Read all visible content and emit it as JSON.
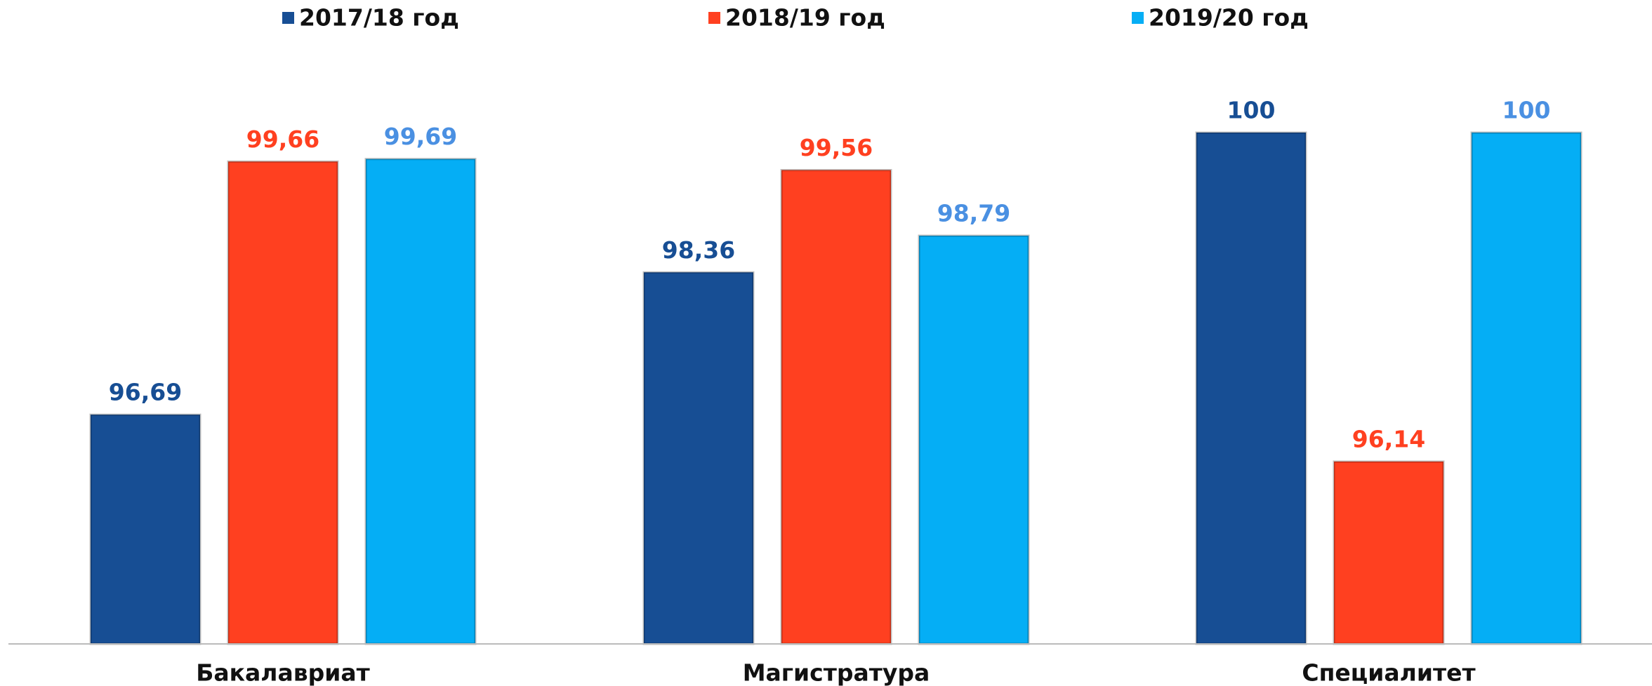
{
  "chart_data": {
    "type": "bar",
    "categories": [
      "Бакалавриат",
      "Магистратура",
      "Специалитет"
    ],
    "series": [
      {
        "name": "2017/18 год",
        "color": "#174e94",
        "label_color": "#174e94",
        "values": [
          96.69,
          98.36,
          100
        ],
        "value_labels": [
          "96,69",
          "98,36",
          "100"
        ]
      },
      {
        "name": "2018/19 год",
        "color": "#ff4020",
        "label_color": "#ff4020",
        "values": [
          99.66,
          99.56,
          96.14
        ],
        "value_labels": [
          "99,66",
          "99,56",
          "96,14"
        ]
      },
      {
        "name": "2019/20 год",
        "color": "#05aef5",
        "label_color": "#4a90e2",
        "values": [
          99.69,
          98.79,
          100
        ],
        "value_labels": [
          "99,69",
          "98,79",
          "100"
        ]
      }
    ],
    "ylim": [
      94,
      101
    ],
    "legend": "top"
  }
}
